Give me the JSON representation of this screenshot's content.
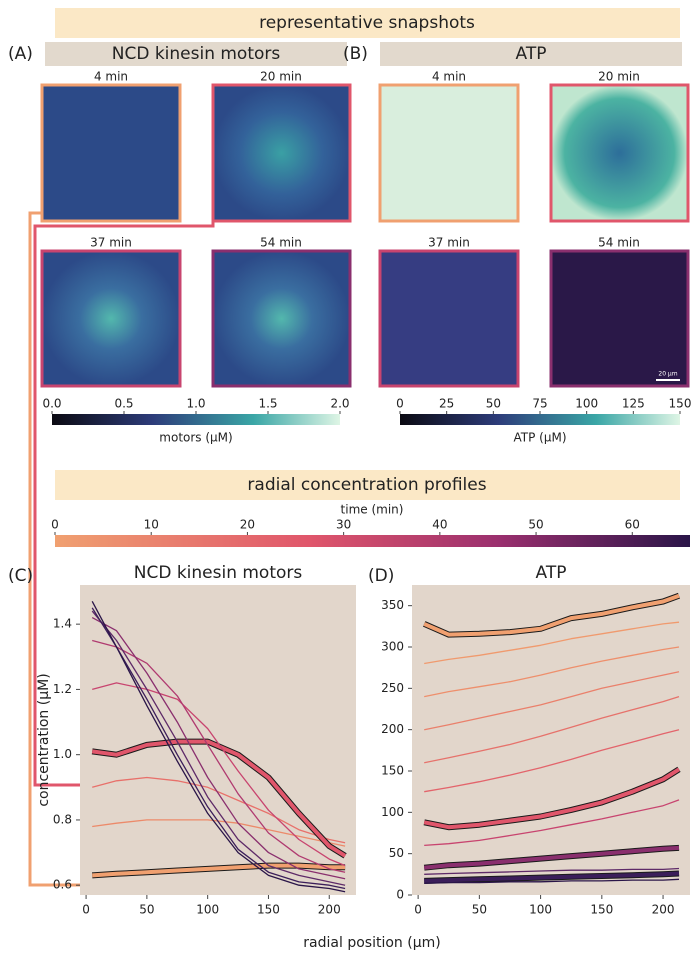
{
  "header": {
    "title": "representative snapshots"
  },
  "panel_a": {
    "label": "(A)",
    "title": "NCD kinesin motors",
    "snapshots": [
      "4 min",
      "20 min",
      "37 min",
      "54 min"
    ],
    "colorbar": {
      "label": "motors (μM)",
      "lim": [
        0,
        2
      ],
      "ticks": [
        {
          "value": 0,
          "label": "0.0"
        },
        0.5,
        {
          "value": 1,
          "label": "1.0"
        },
        1.5,
        {
          "value": 2,
          "label": "2.0"
        }
      ]
    }
  },
  "panel_b": {
    "label": "(B)",
    "title": "ATP",
    "snapshots": [
      "4 min",
      "20 min",
      "37 min",
      "54 min"
    ],
    "scale_bar": "20 μm",
    "colorbar": {
      "label": "ATP (μM)",
      "lim": [
        0,
        150
      ],
      "ticks": [
        0,
        25,
        50,
        75,
        100,
        125,
        150
      ]
    }
  },
  "profiles": {
    "title": "radial concentration profiles"
  },
  "time_colorbar": {
    "label": "time (min)",
    "lim": [
      0,
      66
    ],
    "ticks": [
      0,
      10,
      20,
      30,
      40,
      50,
      60
    ]
  },
  "shared_x_label": "radial position (μm)",
  "chart_data": [
    {
      "type": "line",
      "label": "(C)",
      "title": "NCD kinesin motors",
      "y_label": "concentration (μM)",
      "x": [
        5,
        25,
        50,
        75,
        100,
        125,
        150,
        175,
        200,
        213
      ],
      "xlim": [
        -5,
        222
      ],
      "xticks": [
        0,
        50,
        100,
        150,
        200
      ],
      "ylim": [
        0.57,
        1.52
      ],
      "yticks": [
        0.6,
        0.8,
        {
          "value": 1,
          "label": "1.0"
        },
        1.2,
        1.4
      ],
      "series": [
        {
          "color": "#f0a070",
          "thick": true,
          "values": [
            0.63,
            0.635,
            0.64,
            0.645,
            0.65,
            0.655,
            0.66,
            0.66,
            0.655,
            0.655
          ]
        },
        {
          "color": "#ec8a6a",
          "thick": false,
          "values": [
            0.78,
            0.79,
            0.8,
            0.8,
            0.8,
            0.79,
            0.77,
            0.75,
            0.73,
            0.72
          ]
        },
        {
          "color": "#e8706a",
          "thick": false,
          "values": [
            0.9,
            0.92,
            0.93,
            0.92,
            0.9,
            0.86,
            0.82,
            0.77,
            0.74,
            0.73
          ]
        },
        {
          "color": "#e0566b",
          "thick": true,
          "values": [
            1.01,
            1.0,
            1.03,
            1.04,
            1.04,
            1.0,
            0.93,
            0.82,
            0.72,
            0.69
          ]
        },
        {
          "color": "#c8446f",
          "thick": false,
          "values": [
            1.2,
            1.22,
            1.2,
            1.17,
            1.08,
            0.95,
            0.83,
            0.74,
            0.68,
            0.66
          ]
        },
        {
          "color": "#b03a70",
          "thick": false,
          "values": [
            1.35,
            1.33,
            1.28,
            1.18,
            1.03,
            0.88,
            0.76,
            0.69,
            0.65,
            0.64
          ]
        },
        {
          "color": "#8a2f6e",
          "thick": false,
          "values": [
            1.42,
            1.38,
            1.25,
            1.1,
            0.93,
            0.79,
            0.7,
            0.65,
            0.63,
            0.62
          ]
        },
        {
          "color": "#5e2a68",
          "thick": false,
          "values": [
            1.44,
            1.35,
            1.2,
            1.04,
            0.87,
            0.74,
            0.66,
            0.63,
            0.61,
            0.6
          ]
        },
        {
          "color": "#3b1e5a",
          "thick": false,
          "values": [
            1.45,
            1.33,
            1.17,
            1.0,
            0.84,
            0.71,
            0.64,
            0.61,
            0.6,
            0.59
          ]
        },
        {
          "color": "#2a1548",
          "thick": false,
          "values": [
            1.47,
            1.33,
            1.15,
            0.98,
            0.82,
            0.7,
            0.63,
            0.6,
            0.59,
            0.58
          ]
        }
      ]
    },
    {
      "type": "line",
      "label": "(D)",
      "title": "ATP",
      "x": [
        5,
        25,
        50,
        75,
        100,
        125,
        150,
        175,
        200,
        213
      ],
      "xlim": [
        -5,
        222
      ],
      "xticks": [
        0,
        50,
        100,
        150,
        200
      ],
      "ylim": [
        0,
        375
      ],
      "yticks": [
        0,
        50,
        100,
        150,
        200,
        250,
        300,
        350
      ],
      "series": [
        {
          "color": "#f0a070",
          "thick": true,
          "values": [
            328,
            315,
            316,
            318,
            322,
            335,
            340,
            348,
            355,
            362
          ]
        },
        {
          "color": "#f09a6e",
          "thick": false,
          "values": [
            280,
            285,
            290,
            296,
            302,
            310,
            316,
            322,
            328,
            330
          ]
        },
        {
          "color": "#ee8f6c",
          "thick": false,
          "values": [
            240,
            246,
            252,
            258,
            266,
            275,
            283,
            290,
            297,
            300
          ]
        },
        {
          "color": "#ea806b",
          "thick": false,
          "values": [
            200,
            206,
            214,
            222,
            230,
            240,
            250,
            258,
            266,
            270
          ]
        },
        {
          "color": "#e6726b",
          "thick": false,
          "values": [
            160,
            166,
            174,
            182,
            192,
            203,
            214,
            224,
            234,
            240
          ]
        },
        {
          "color": "#e3646b",
          "thick": false,
          "values": [
            125,
            130,
            137,
            145,
            154,
            164,
            175,
            185,
            195,
            200
          ]
        },
        {
          "color": "#e0566b",
          "thick": true,
          "values": [
            88,
            82,
            85,
            90,
            95,
            103,
            112,
            125,
            140,
            152
          ]
        },
        {
          "color": "#c8446f",
          "thick": false,
          "values": [
            60,
            62,
            66,
            72,
            78,
            85,
            92,
            100,
            108,
            115
          ]
        },
        {
          "color": "#8a2f6e",
          "thick": true,
          "values": [
            33,
            36,
            38,
            41,
            44,
            47,
            50,
            53,
            56,
            57
          ]
        },
        {
          "color": "#5e2a68",
          "thick": false,
          "values": [
            25,
            26,
            27,
            28,
            29,
            30,
            30,
            31,
            31,
            32
          ]
        },
        {
          "color": "#3b1e5a",
          "thick": true,
          "values": [
            17,
            18,
            19,
            20,
            21,
            22,
            23,
            24,
            25,
            26
          ]
        },
        {
          "color": "#2a1548",
          "thick": false,
          "values": [
            14,
            15,
            15,
            16,
            16,
            17,
            17,
            18,
            18,
            19
          ]
        }
      ]
    }
  ]
}
